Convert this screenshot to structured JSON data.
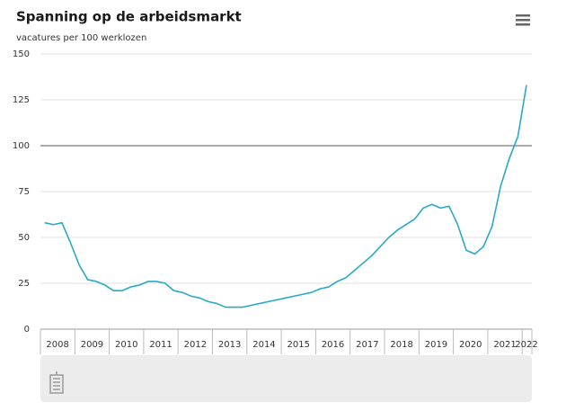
{
  "chart_data": {
    "type": "line",
    "title": "Spanning op de arbeidsmarkt",
    "subtitle": "vacatures per 100 werklozen",
    "categories": [
      "2008",
      null,
      null,
      null,
      "2009",
      null,
      null,
      null,
      "2010",
      null,
      null,
      null,
      "2011",
      null,
      null,
      null,
      "2012",
      null,
      null,
      null,
      "2013",
      null,
      null,
      null,
      "2014",
      null,
      null,
      null,
      "2015",
      null,
      null,
      null,
      "2016",
      null,
      null,
      null,
      "2017",
      null,
      null,
      null,
      "2018",
      null,
      null,
      null,
      "2019",
      null,
      null,
      null,
      "2020",
      null,
      null,
      null,
      "2021",
      null,
      null,
      null,
      "2022"
    ],
    "values": [
      58,
      57,
      58,
      47,
      35,
      27,
      26,
      24,
      21,
      21,
      23,
      24,
      26,
      26,
      25,
      21,
      20,
      18,
      17,
      15,
      14,
      12,
      12,
      12,
      13,
      14,
      15,
      16,
      17,
      18,
      19,
      20,
      22,
      23,
      26,
      28,
      32,
      36,
      40,
      45,
      50,
      54,
      57,
      60,
      66,
      68,
      66,
      67,
      57,
      43,
      41,
      45,
      56,
      78,
      93,
      105,
      133
    ],
    "color": "#2aa9c4",
    "ylim": [
      0,
      150
    ],
    "yticks": [
      0,
      25,
      50,
      75,
      100,
      125,
      150
    ],
    "grid": true,
    "plot_line": 100
  }
}
